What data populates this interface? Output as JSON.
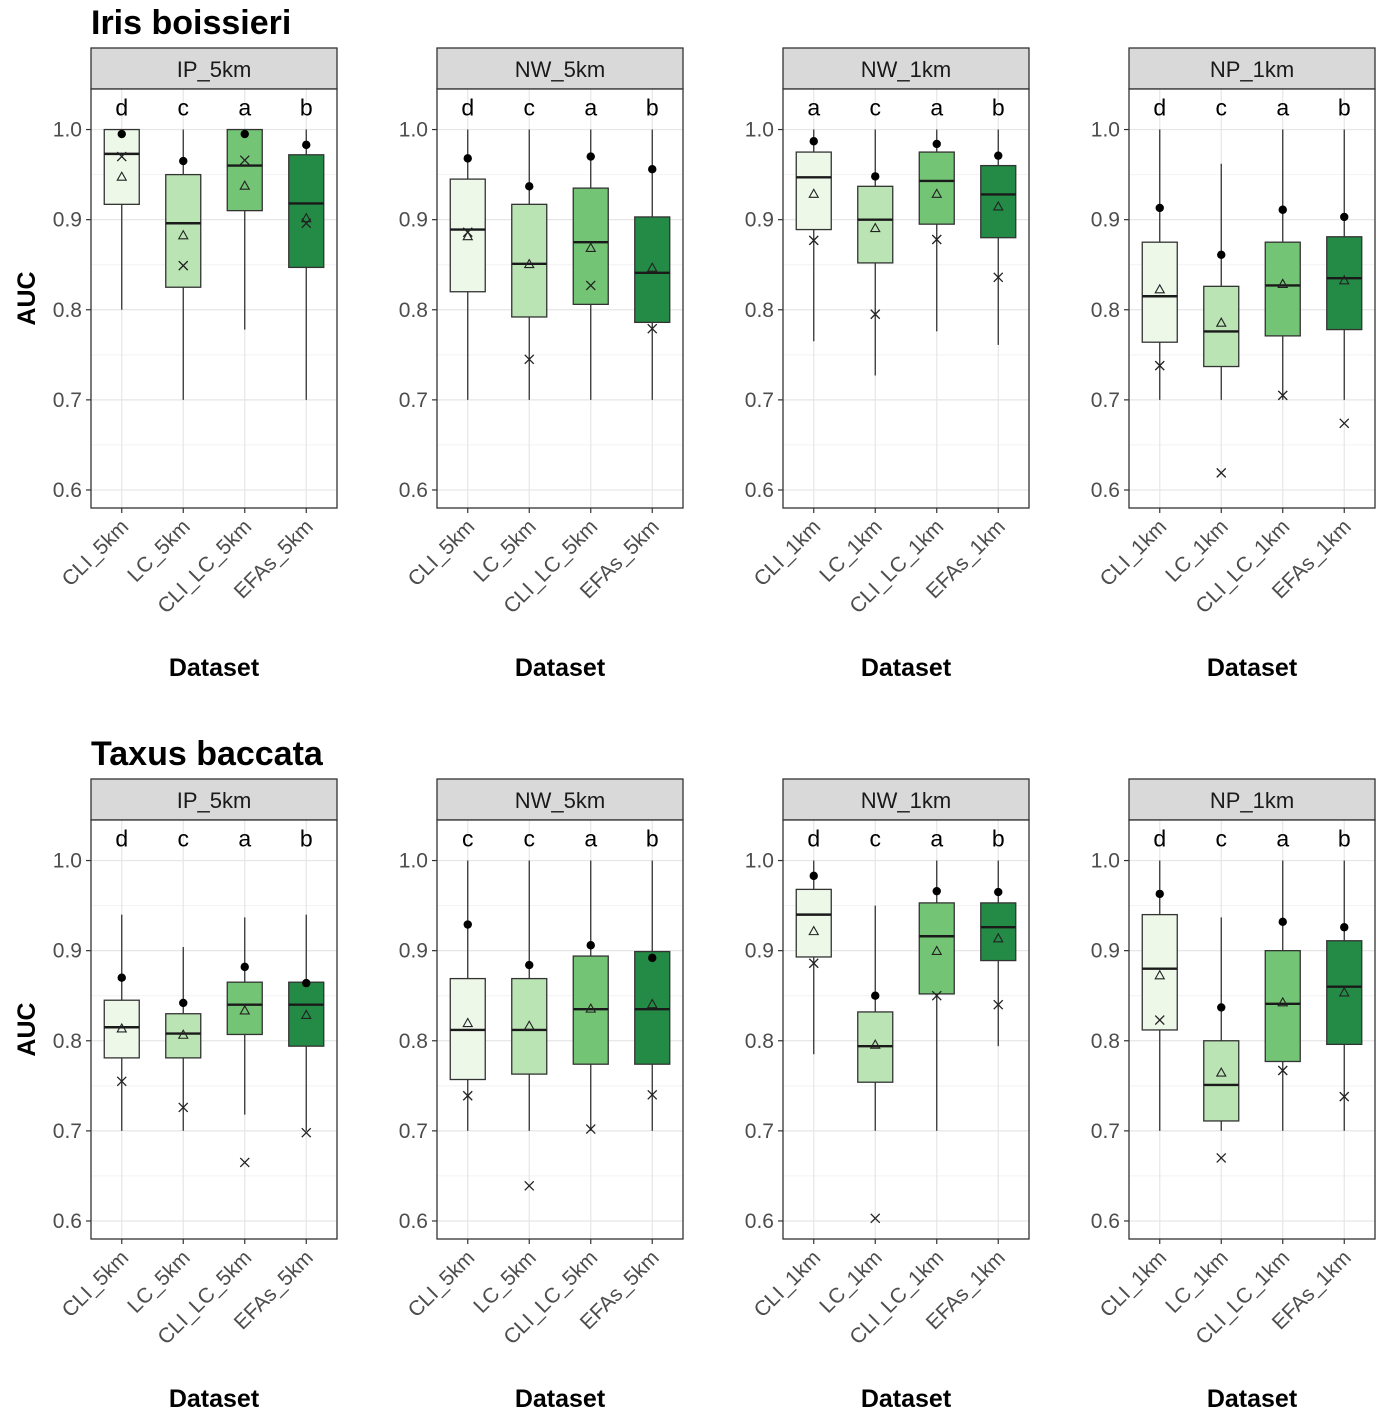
{
  "figure": {
    "rows": [
      {
        "title": "Iris boissieri",
        "ylabel": "AUC",
        "panels": [
          {
            "strip": "IP_5km",
            "xlabel": "Dataset",
            "categories": [
              "CLI_5km",
              "LC_5km",
              "CLI_LC_5km",
              "EFAs_5km"
            ],
            "letters": [
              "d",
              "c",
              "a",
              "b"
            ],
            "boxes": [
              {
                "wlo": 0.8,
                "q1": 0.917,
                "med": 0.973,
                "q3": 1.0,
                "whi": 1.0,
                "dot": 0.995,
                "tri": 0.948,
                "cross": 0.97
              },
              {
                "wlo": 0.7,
                "q1": 0.825,
                "med": 0.896,
                "q3": 0.95,
                "whi": 1.0,
                "dot": 0.965,
                "tri": 0.883,
                "cross": 0.849
              },
              {
                "wlo": 0.778,
                "q1": 0.91,
                "med": 0.96,
                "q3": 1.0,
                "whi": 1.0,
                "dot": 0.995,
                "tri": 0.938,
                "cross": 0.966
              },
              {
                "wlo": 0.7,
                "q1": 0.847,
                "med": 0.918,
                "q3": 0.972,
                "whi": 1.0,
                "dot": 0.983,
                "tri": 0.902,
                "cross": 0.896
              }
            ]
          },
          {
            "strip": "NW_5km",
            "xlabel": "Dataset",
            "categories": [
              "CLI_5km",
              "LC_5km",
              "CLI_LC_5km",
              "EFAs_5km"
            ],
            "letters": [
              "d",
              "c",
              "a",
              "b"
            ],
            "boxes": [
              {
                "wlo": 0.7,
                "q1": 0.82,
                "med": 0.889,
                "q3": 0.945,
                "whi": 1.0,
                "dot": 0.968,
                "tri": 0.882,
                "cross": 0.886
              },
              {
                "wlo": 0.7,
                "q1": 0.792,
                "med": 0.851,
                "q3": 0.917,
                "whi": 1.0,
                "dot": 0.937,
                "tri": 0.851,
                "cross": 0.745
              },
              {
                "wlo": 0.7,
                "q1": 0.806,
                "med": 0.875,
                "q3": 0.935,
                "whi": 1.0,
                "dot": 0.97,
                "tri": 0.869,
                "cross": 0.827
              },
              {
                "wlo": 0.7,
                "q1": 0.786,
                "med": 0.841,
                "q3": 0.903,
                "whi": 1.0,
                "dot": 0.956,
                "tri": 0.847,
                "cross": 0.779
              }
            ]
          },
          {
            "strip": "NW_1km",
            "xlabel": "Dataset",
            "categories": [
              "CLI_1km",
              "LC_1km",
              "CLI_LC_1km",
              "EFAs_1km"
            ],
            "letters": [
              "a",
              "c",
              "a",
              "b"
            ],
            "boxes": [
              {
                "wlo": 0.765,
                "q1": 0.889,
                "med": 0.947,
                "q3": 0.975,
                "whi": 1.0,
                "dot": 0.987,
                "tri": 0.929,
                "cross": 0.877
              },
              {
                "wlo": 0.727,
                "q1": 0.852,
                "med": 0.9,
                "q3": 0.937,
                "whi": 1.0,
                "dot": 0.948,
                "tri": 0.891,
                "cross": 0.795
              },
              {
                "wlo": 0.776,
                "q1": 0.895,
                "med": 0.943,
                "q3": 0.975,
                "whi": 1.0,
                "dot": 0.984,
                "tri": 0.929,
                "cross": 0.878
              },
              {
                "wlo": 0.761,
                "q1": 0.88,
                "med": 0.928,
                "q3": 0.96,
                "whi": 1.0,
                "dot": 0.971,
                "tri": 0.915,
                "cross": 0.836
              }
            ]
          },
          {
            "strip": "NP_1km",
            "xlabel": "Dataset",
            "categories": [
              "CLI_1km",
              "LC_1km",
              "CLI_LC_1km",
              "EFAs_1km"
            ],
            "letters": [
              "d",
              "c",
              "a",
              "b"
            ],
            "boxes": [
              {
                "wlo": 0.7,
                "q1": 0.764,
                "med": 0.815,
                "q3": 0.875,
                "whi": 1.0,
                "dot": 0.913,
                "tri": 0.823,
                "cross": 0.738
              },
              {
                "wlo": 0.7,
                "q1": 0.737,
                "med": 0.776,
                "q3": 0.826,
                "whi": 0.962,
                "dot": 0.861,
                "tri": 0.786,
                "cross": 0.619
              },
              {
                "wlo": 0.7,
                "q1": 0.771,
                "med": 0.827,
                "q3": 0.875,
                "whi": 1.0,
                "dot": 0.911,
                "tri": 0.829,
                "cross": 0.705
              },
              {
                "wlo": 0.7,
                "q1": 0.778,
                "med": 0.835,
                "q3": 0.881,
                "whi": 1.0,
                "dot": 0.903,
                "tri": 0.833,
                "cross": 0.674
              }
            ]
          }
        ]
      },
      {
        "title": "Taxus baccata",
        "ylabel": "AUC",
        "panels": [
          {
            "strip": "IP_5km",
            "xlabel": "Dataset",
            "categories": [
              "CLI_5km",
              "LC_5km",
              "CLI_LC_5km",
              "EFAs_5km"
            ],
            "letters": [
              "d",
              "c",
              "a",
              "b"
            ],
            "boxes": [
              {
                "wlo": 0.7,
                "q1": 0.781,
                "med": 0.815,
                "q3": 0.845,
                "whi": 0.94,
                "dot": 0.87,
                "tri": 0.814,
                "cross": 0.755
              },
              {
                "wlo": 0.7,
                "q1": 0.781,
                "med": 0.808,
                "q3": 0.83,
                "whi": 0.904,
                "dot": 0.842,
                "tri": 0.807,
                "cross": 0.726
              },
              {
                "wlo": 0.718,
                "q1": 0.807,
                "med": 0.84,
                "q3": 0.865,
                "whi": 0.937,
                "dot": 0.882,
                "tri": 0.834,
                "cross": 0.665
              },
              {
                "wlo": 0.7,
                "q1": 0.794,
                "med": 0.84,
                "q3": 0.865,
                "whi": 0.94,
                "dot": 0.864,
                "tri": 0.829,
                "cross": 0.698
              }
            ]
          },
          {
            "strip": "NW_5km",
            "xlabel": "Dataset",
            "categories": [
              "CLI_5km",
              "LC_5km",
              "CLI_LC_5km",
              "EFAs_5km"
            ],
            "letters": [
              "c",
              "c",
              "a",
              "b"
            ],
            "boxes": [
              {
                "wlo": 0.7,
                "q1": 0.757,
                "med": 0.812,
                "q3": 0.869,
                "whi": 1.0,
                "dot": 0.929,
                "tri": 0.82,
                "cross": 0.739
              },
              {
                "wlo": 0.7,
                "q1": 0.763,
                "med": 0.812,
                "q3": 0.869,
                "whi": 1.0,
                "dot": 0.884,
                "tri": 0.817,
                "cross": 0.639
              },
              {
                "wlo": 0.7,
                "q1": 0.774,
                "med": 0.835,
                "q3": 0.894,
                "whi": 1.0,
                "dot": 0.906,
                "tri": 0.836,
                "cross": 0.702
              },
              {
                "wlo": 0.7,
                "q1": 0.774,
                "med": 0.835,
                "q3": 0.899,
                "whi": 1.0,
                "dot": 0.892,
                "tri": 0.841,
                "cross": 0.74
              }
            ]
          },
          {
            "strip": "NW_1km",
            "xlabel": "Dataset",
            "categories": [
              "CLI_1km",
              "LC_1km",
              "CLI_LC_1km",
              "EFAs_1km"
            ],
            "letters": [
              "d",
              "c",
              "a",
              "b"
            ],
            "boxes": [
              {
                "wlo": 0.785,
                "q1": 0.893,
                "med": 0.94,
                "q3": 0.968,
                "whi": 1.0,
                "dot": 0.983,
                "tri": 0.922,
                "cross": 0.886
              },
              {
                "wlo": 0.7,
                "q1": 0.754,
                "med": 0.794,
                "q3": 0.832,
                "whi": 0.95,
                "dot": 0.85,
                "tri": 0.796,
                "cross": 0.603
              },
              {
                "wlo": 0.7,
                "q1": 0.852,
                "med": 0.916,
                "q3": 0.953,
                "whi": 1.0,
                "dot": 0.966,
                "tri": 0.9,
                "cross": 0.85
              },
              {
                "wlo": 0.794,
                "q1": 0.889,
                "med": 0.926,
                "q3": 0.953,
                "whi": 1.0,
                "dot": 0.965,
                "tri": 0.914,
                "cross": 0.84
              }
            ]
          },
          {
            "strip": "NP_1km",
            "xlabel": "Dataset",
            "categories": [
              "CLI_1km",
              "LC_1km",
              "CLI_LC_1km",
              "EFAs_1km"
            ],
            "letters": [
              "d",
              "c",
              "a",
              "b"
            ],
            "boxes": [
              {
                "wlo": 0.7,
                "q1": 0.812,
                "med": 0.88,
                "q3": 0.94,
                "whi": 1.0,
                "dot": 0.963,
                "tri": 0.873,
                "cross": 0.823
              },
              {
                "wlo": 0.7,
                "q1": 0.711,
                "med": 0.751,
                "q3": 0.8,
                "whi": 0.937,
                "dot": 0.837,
                "tri": 0.765,
                "cross": 0.67
              },
              {
                "wlo": 0.7,
                "q1": 0.777,
                "med": 0.841,
                "q3": 0.9,
                "whi": 1.0,
                "dot": 0.932,
                "tri": 0.843,
                "cross": 0.767
              },
              {
                "wlo": 0.7,
                "q1": 0.796,
                "med": 0.86,
                "q3": 0.911,
                "whi": 1.0,
                "dot": 0.926,
                "tri": 0.854,
                "cross": 0.738
              }
            ]
          }
        ]
      }
    ]
  },
  "chart_data": {
    "type": "box",
    "ylim": [
      0.58,
      1.045
    ],
    "yticks": [
      0.6,
      0.7,
      0.8,
      0.9,
      1.0
    ],
    "ytick_labels": [
      "0.6",
      "0.7",
      "0.8",
      "0.9",
      "1.0"
    ],
    "grid": true,
    "fill_colors": [
      "#edf8e9",
      "#bae4b3",
      "#74c476",
      "#238b45"
    ],
    "outline_color": "#333333"
  }
}
